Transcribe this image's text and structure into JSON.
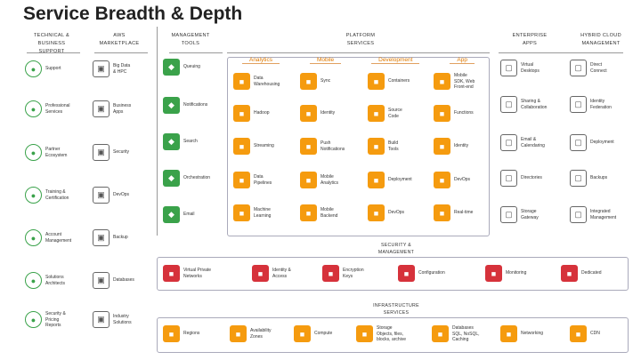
{
  "title": "Service Breadth & Depth",
  "columns": {
    "technical": "TECHNICAL &\nBUSINESS\nSUPPORT",
    "aws": "AWS\nMARKETPLACE",
    "mgmt": "MANAGEMENT\nTOOLS",
    "platform": "PLATFORM\nSERVICES",
    "enterprise": "ENTERPRISE\nAPPS",
    "hybrid": "HYBRID CLOUD\nMANAGEMENT"
  },
  "tabs": [
    "Analytics",
    "Mobile",
    "Development",
    "App"
  ],
  "technical": [
    "Support",
    "Professional\nServices",
    "Partner\nEcosystem",
    "Training &\nCertification",
    "Account\nManagement",
    "Solutions\nArchitects",
    "Security &\nPricing\nReports"
  ],
  "marketplace": [
    "Big Data\n& HPC",
    "Business\nApps",
    "Security",
    "DevOps",
    "Backup",
    "Databases",
    "Industry\nSolutions"
  ],
  "mgmt": [
    "Queuing",
    "Notifications",
    "Search",
    "Orchestration",
    "Email"
  ],
  "platform": [
    [
      "Data\nWarehousing",
      "Sync",
      "Containers",
      "Mobile\nSDK, Web\nFront-end"
    ],
    [
      "Hadoop",
      "Identity",
      "Source\nCode",
      "Functions"
    ],
    [
      "Streaming",
      "Push\nNotifications",
      "Build\nTools",
      "Identity"
    ],
    [
      "Data\nPipelines",
      "Mobile\nAnalytics",
      "Deployment",
      "DevOps"
    ],
    [
      "Machine\nLearning",
      "Mobile\nBackend",
      "DevOps",
      "Real-time"
    ]
  ],
  "enterprise": [
    "Virtual\nDesktops",
    "Sharing &\nCollaboration",
    "Email &\nCalendaring",
    "Directories",
    "Storage\nGateway"
  ],
  "hybrid": [
    "Direct\nConnect",
    "Identity\nFederation",
    "Deployment",
    "Backups",
    "Integrated\nManagement"
  ],
  "security": {
    "header": "SECURITY &\nMANAGEMENT",
    "items": [
      "Virtual Private\nNetworks",
      "Identity &\nAccess",
      "Encryption\nKeys",
      "Configuration",
      "Monitoring",
      "Dedicated"
    ]
  },
  "infra": {
    "header": "INFRASTRUCTURE\nSERVICES",
    "items": [
      "Regions",
      "Availability\nZones",
      "Compute",
      "Storage\nObjects, files,\nblocks, archive",
      "Databases\nSQL, NoSQL,\nCaching",
      "Networking",
      "CDN"
    ]
  }
}
